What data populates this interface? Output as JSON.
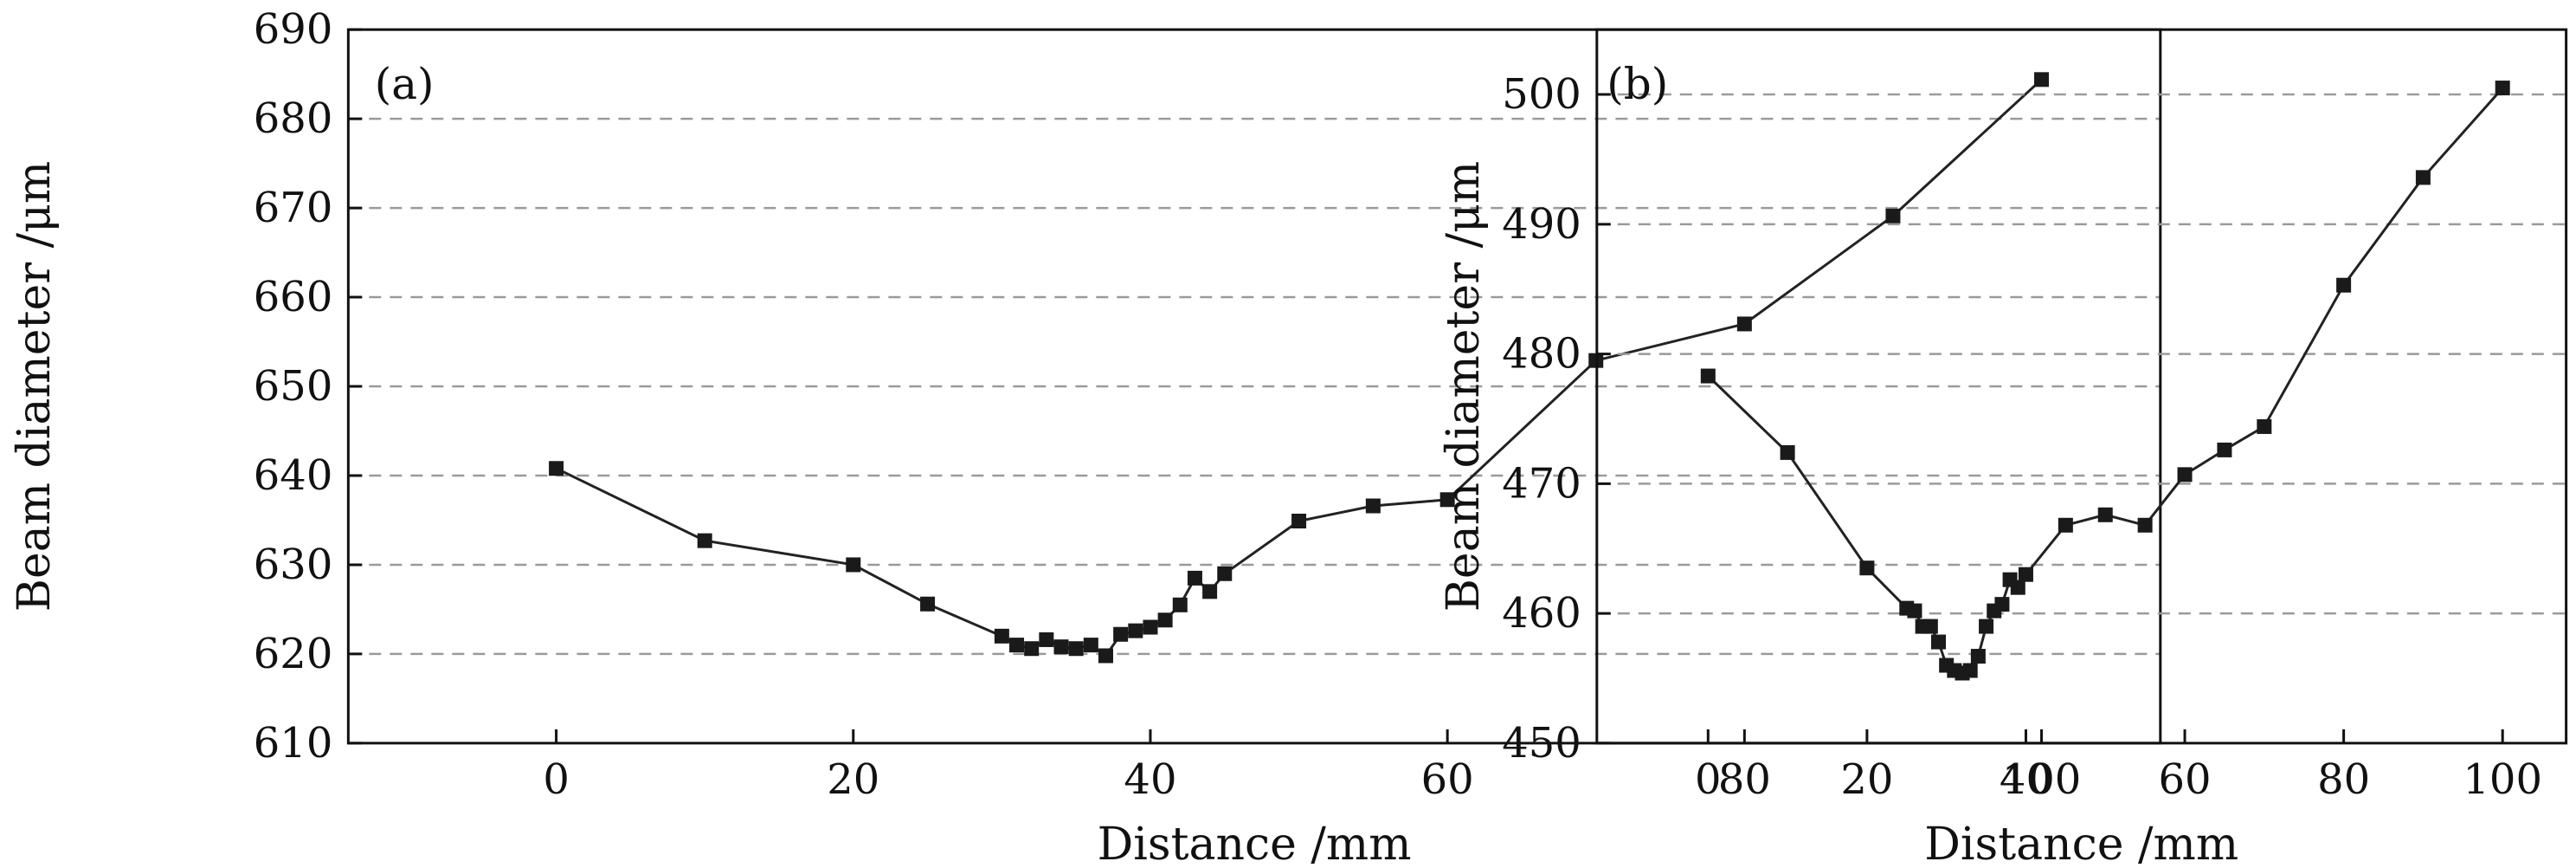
{
  "chart_data": [
    {
      "type": "line",
      "panel_label": "(a)",
      "xlabel": "Distance /mm",
      "ylabel": "Beam diameter /μm",
      "xlim": [
        -14,
        108
      ],
      "ylim": [
        610,
        690
      ],
      "xticks": [
        0,
        20,
        40,
        60,
        80,
        100
      ],
      "yticks": [
        610,
        620,
        630,
        640,
        650,
        660,
        670,
        680,
        690
      ],
      "gridlines_y": [
        620,
        630,
        640,
        650,
        660,
        670,
        680
      ],
      "series": [
        {
          "name": "beam diameter",
          "x": [
            0,
            10,
            20,
            25,
            30,
            31,
            32,
            33,
            34,
            35,
            36,
            37,
            38,
            39,
            40,
            41,
            42,
            43,
            44,
            45,
            50,
            55,
            60,
            70,
            80,
            90,
            100
          ],
          "y": [
            640.8,
            632.7,
            630.0,
            625.6,
            622.0,
            621.0,
            620.6,
            621.6,
            620.8,
            620.6,
            621.0,
            619.8,
            622.2,
            622.6,
            623.0,
            623.8,
            625.5,
            628.5,
            627.0,
            629.0,
            634.9,
            636.6,
            637.3,
            652.9,
            657.0,
            669.1,
            684.4
          ]
        }
      ]
    },
    {
      "type": "line",
      "panel_label": "(b)",
      "xlabel": "Distance /mm",
      "ylabel": "Beam diameter /μm",
      "xlim": [
        -14,
        108
      ],
      "ylim": [
        450,
        505
      ],
      "xticks": [
        0,
        20,
        40,
        60,
        80,
        100
      ],
      "yticks": [
        450,
        460,
        470,
        480,
        490,
        500
      ],
      "gridlines_y": [
        460,
        470,
        480,
        490,
        500
      ],
      "series": [
        {
          "name": "beam diameter",
          "x": [
            0,
            10,
            20,
            25,
            26,
            27,
            28,
            29,
            30,
            31,
            32,
            33,
            34,
            35,
            36,
            37,
            38,
            39,
            40,
            45,
            50,
            55,
            60,
            65,
            70,
            80,
            90,
            100
          ],
          "y": [
            478.3,
            472.4,
            463.5,
            460.4,
            460.2,
            459.0,
            459.0,
            457.8,
            456.0,
            455.6,
            455.4,
            455.6,
            456.7,
            459.0,
            460.2,
            460.7,
            462.6,
            462.0,
            463.0,
            466.8,
            467.6,
            466.8,
            470.7,
            472.6,
            474.4,
            485.3,
            493.6,
            500.5
          ]
        }
      ]
    }
  ]
}
